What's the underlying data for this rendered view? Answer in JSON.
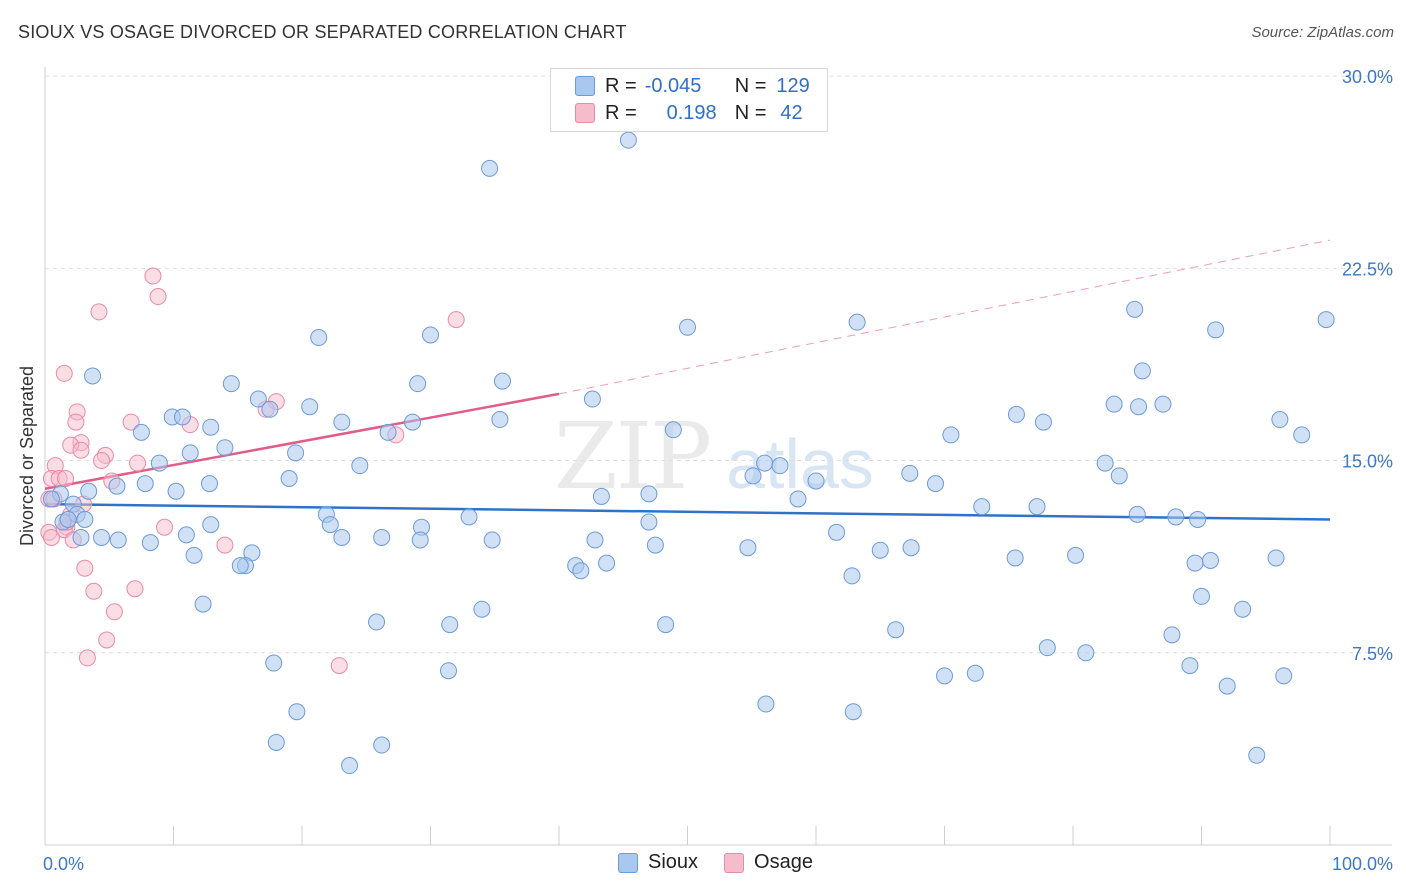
{
  "header": {
    "title": "SIOUX VS OSAGE DIVORCED OR SEPARATED CORRELATION CHART",
    "source": "Source: ZipAtlas.com"
  },
  "legend": {
    "r_label": "R =",
    "n_label": "N =",
    "sioux": {
      "r": "-0.045",
      "n": "129"
    },
    "osage": {
      "r": "0.198",
      "n": "42"
    }
  },
  "colors": {
    "sioux_fill": "#a9c8ef",
    "sioux_stroke": "#6d9ad8",
    "sioux_line": "#2f72c9",
    "osage_fill": "#f5bccb",
    "osage_stroke": "#e98aa6",
    "osage_line": "#e05c8a",
    "tick_label": "#3b78c9"
  },
  "watermark": {
    "zip": "ZIP",
    "atlas": "atlas"
  },
  "chart_data": {
    "type": "scatter",
    "title": "SIOUX VS OSAGE DIVORCED OR SEPARATED CORRELATION CHART",
    "xlabel": "",
    "ylabel": "Divorced or Separated",
    "xlim": [
      0,
      100
    ],
    "ylim": [
      0,
      31.5
    ],
    "x_tick_labels": [
      "0.0%",
      "100.0%"
    ],
    "y_ticks": [
      7.5,
      15.0,
      22.5,
      30.0
    ],
    "y_tick_labels": [
      "7.5%",
      "15.0%",
      "22.5%",
      "30.0%"
    ],
    "grid": true,
    "legend_position": "top-center",
    "series": [
      {
        "name": "Sioux",
        "points": [
          [
            45.4,
            27.5
          ],
          [
            34.6,
            26.4
          ],
          [
            50.0,
            20.2
          ],
          [
            63.2,
            20.4
          ],
          [
            84.8,
            20.9
          ],
          [
            91.1,
            20.1
          ],
          [
            99.7,
            20.5
          ],
          [
            3.7,
            18.3
          ],
          [
            14.5,
            18.0
          ],
          [
            21.3,
            19.8
          ],
          [
            30.0,
            19.9
          ],
          [
            29.0,
            18.0
          ],
          [
            35.6,
            18.1
          ],
          [
            42.6,
            17.4
          ],
          [
            85.4,
            18.5
          ],
          [
            16.6,
            17.4
          ],
          [
            17.5,
            17.0
          ],
          [
            20.6,
            17.1
          ],
          [
            9.9,
            16.7
          ],
          [
            10.7,
            16.7
          ],
          [
            12.9,
            16.3
          ],
          [
            23.1,
            16.5
          ],
          [
            28.6,
            16.5
          ],
          [
            35.4,
            16.6
          ],
          [
            26.7,
            16.1
          ],
          [
            7.5,
            16.1
          ],
          [
            48.9,
            16.2
          ],
          [
            70.5,
            16.0
          ],
          [
            75.6,
            16.8
          ],
          [
            77.7,
            16.5
          ],
          [
            83.2,
            17.2
          ],
          [
            85.1,
            17.1
          ],
          [
            87.0,
            17.2
          ],
          [
            96.1,
            16.6
          ],
          [
            97.8,
            16.0
          ],
          [
            11.3,
            15.3
          ],
          [
            14.0,
            15.5
          ],
          [
            19.5,
            15.3
          ],
          [
            8.9,
            14.9
          ],
          [
            24.5,
            14.8
          ],
          [
            56.0,
            14.9
          ],
          [
            57.2,
            14.8
          ],
          [
            67.3,
            14.5
          ],
          [
            82.5,
            14.9
          ],
          [
            83.6,
            14.4
          ],
          [
            5.6,
            14.0
          ],
          [
            3.4,
            13.8
          ],
          [
            7.8,
            14.1
          ],
          [
            10.2,
            13.8
          ],
          [
            12.8,
            14.1
          ],
          [
            19.0,
            14.3
          ],
          [
            55.1,
            14.4
          ],
          [
            60.0,
            14.2
          ],
          [
            69.3,
            14.1
          ],
          [
            1.2,
            13.7
          ],
          [
            0.5,
            13.5
          ],
          [
            2.2,
            13.3
          ],
          [
            47.0,
            13.7
          ],
          [
            58.6,
            13.5
          ],
          [
            43.3,
            13.6
          ],
          [
            2.5,
            12.9
          ],
          [
            1.4,
            12.6
          ],
          [
            1.8,
            12.7
          ],
          [
            3.1,
            12.7
          ],
          [
            21.9,
            12.9
          ],
          [
            22.2,
            12.5
          ],
          [
            12.9,
            12.5
          ],
          [
            29.3,
            12.4
          ],
          [
            33.0,
            12.8
          ],
          [
            47.0,
            12.6
          ],
          [
            77.2,
            13.2
          ],
          [
            72.9,
            13.2
          ],
          [
            85.0,
            12.9
          ],
          [
            88.0,
            12.8
          ],
          [
            89.7,
            12.7
          ],
          [
            2.8,
            12.0
          ],
          [
            4.4,
            12.0
          ],
          [
            5.7,
            11.9
          ],
          [
            8.2,
            11.8
          ],
          [
            11.0,
            12.1
          ],
          [
            23.1,
            12.0
          ],
          [
            26.2,
            12.0
          ],
          [
            42.8,
            11.9
          ],
          [
            47.5,
            11.7
          ],
          [
            54.7,
            11.6
          ],
          [
            61.6,
            12.2
          ],
          [
            65.0,
            11.5
          ],
          [
            67.4,
            11.6
          ],
          [
            75.5,
            11.2
          ],
          [
            80.2,
            11.3
          ],
          [
            11.6,
            11.3
          ],
          [
            16.1,
            11.4
          ],
          [
            15.6,
            10.9
          ],
          [
            15.2,
            10.9
          ],
          [
            29.2,
            11.9
          ],
          [
            34.8,
            11.9
          ],
          [
            41.3,
            10.9
          ],
          [
            41.7,
            10.7
          ],
          [
            43.7,
            11.0
          ],
          [
            62.8,
            10.5
          ],
          [
            89.5,
            11.0
          ],
          [
            90.7,
            11.1
          ],
          [
            95.8,
            11.2
          ],
          [
            12.3,
            9.4
          ],
          [
            34.0,
            9.2
          ],
          [
            25.8,
            8.7
          ],
          [
            31.5,
            8.6
          ],
          [
            48.3,
            8.6
          ],
          [
            66.2,
            8.4
          ],
          [
            87.7,
            8.2
          ],
          [
            90.0,
            9.7
          ],
          [
            93.2,
            9.2
          ],
          [
            17.8,
            7.1
          ],
          [
            31.4,
            6.8
          ],
          [
            56.1,
            5.5
          ],
          [
            62.9,
            5.2
          ],
          [
            70.0,
            6.6
          ],
          [
            72.4,
            6.7
          ],
          [
            78.0,
            7.7
          ],
          [
            89.1,
            7.0
          ],
          [
            92.0,
            6.2
          ],
          [
            96.4,
            6.6
          ],
          [
            81.0,
            7.5
          ],
          [
            19.6,
            5.2
          ],
          [
            18.0,
            4.0
          ],
          [
            23.7,
            3.1
          ],
          [
            26.2,
            3.9
          ],
          [
            94.3,
            3.5
          ]
        ]
      },
      {
        "name": "Osage",
        "points": [
          [
            8.4,
            22.2
          ],
          [
            8.8,
            21.4
          ],
          [
            4.2,
            20.8
          ],
          [
            32.0,
            20.5
          ],
          [
            1.5,
            18.4
          ],
          [
            18.0,
            17.3
          ],
          [
            17.2,
            17.0
          ],
          [
            2.5,
            16.9
          ],
          [
            2.4,
            16.5
          ],
          [
            6.7,
            16.5
          ],
          [
            11.3,
            16.4
          ],
          [
            27.3,
            16.0
          ],
          [
            2.8,
            15.7
          ],
          [
            2.0,
            15.6
          ],
          [
            2.8,
            15.4
          ],
          [
            4.7,
            15.2
          ],
          [
            4.4,
            15.0
          ],
          [
            7.2,
            14.9
          ],
          [
            0.8,
            14.8
          ],
          [
            0.5,
            14.3
          ],
          [
            1.1,
            14.3
          ],
          [
            1.6,
            14.3
          ],
          [
            5.2,
            14.2
          ],
          [
            0.3,
            13.5
          ],
          [
            0.7,
            13.5
          ],
          [
            3.0,
            13.3
          ],
          [
            2.0,
            12.9
          ],
          [
            1.7,
            12.4
          ],
          [
            1.5,
            12.3
          ],
          [
            0.3,
            12.2
          ],
          [
            9.3,
            12.4
          ],
          [
            14.0,
            11.7
          ],
          [
            1.7,
            12.6
          ],
          [
            3.1,
            10.8
          ],
          [
            3.8,
            9.9
          ],
          [
            7.0,
            10.0
          ],
          [
            5.4,
            9.1
          ],
          [
            4.8,
            8.0
          ],
          [
            3.3,
            7.3
          ],
          [
            22.9,
            7.0
          ],
          [
            0.5,
            12.0
          ],
          [
            2.2,
            11.9
          ]
        ]
      }
    ],
    "trend_lines": [
      {
        "series": "Sioux",
        "x": [
          0,
          100
        ],
        "y": [
          13.3,
          12.7
        ],
        "style": "solid"
      },
      {
        "series": "Osage",
        "x": [
          0,
          40
        ],
        "y": [
          13.9,
          17.6
        ],
        "style": "solid"
      },
      {
        "series": "Osage",
        "x": [
          40,
          100
        ],
        "y": [
          17.6,
          23.6
        ],
        "style": "dashed"
      }
    ]
  }
}
